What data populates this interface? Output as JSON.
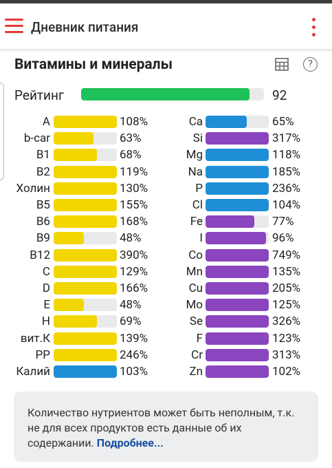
{
  "app": {
    "title": "Дневник питания"
  },
  "section": {
    "title": "Витамины и минералы"
  },
  "rating": {
    "label": "Рейтинг",
    "value": "92",
    "fraction": 0.92
  },
  "colors": {
    "vitamin": "#f2d600",
    "mineral": "#1e8fd6",
    "trace": "#8a45bf",
    "rating": "#1fc25a",
    "accent": "#e53935"
  },
  "vitamins": [
    {
      "name": "A",
      "pct": "108%",
      "fill": 1.0,
      "color": "vitamin"
    },
    {
      "name": "b-car",
      "pct": "63%",
      "fill": 0.63,
      "color": "vitamin"
    },
    {
      "name": "B1",
      "pct": "68%",
      "fill": 0.68,
      "color": "vitamin"
    },
    {
      "name": "B2",
      "pct": "119%",
      "fill": 1.0,
      "color": "vitamin"
    },
    {
      "name": "Холин",
      "pct": "130%",
      "fill": 1.0,
      "color": "vitamin"
    },
    {
      "name": "B5",
      "pct": "155%",
      "fill": 1.0,
      "color": "vitamin"
    },
    {
      "name": "B6",
      "pct": "168%",
      "fill": 1.0,
      "color": "vitamin"
    },
    {
      "name": "B9",
      "pct": "48%",
      "fill": 0.48,
      "color": "vitamin"
    },
    {
      "name": "B12",
      "pct": "390%",
      "fill": 1.0,
      "color": "vitamin"
    },
    {
      "name": "C",
      "pct": "129%",
      "fill": 1.0,
      "color": "vitamin"
    },
    {
      "name": "D",
      "pct": "166%",
      "fill": 1.0,
      "color": "vitamin"
    },
    {
      "name": "E",
      "pct": "48%",
      "fill": 0.48,
      "color": "vitamin"
    },
    {
      "name": "H",
      "pct": "69%",
      "fill": 0.69,
      "color": "vitamin"
    },
    {
      "name": "вит.К",
      "pct": "139%",
      "fill": 1.0,
      "color": "vitamin"
    },
    {
      "name": "PP",
      "pct": "246%",
      "fill": 1.0,
      "color": "vitamin"
    },
    {
      "name": "Калий",
      "pct": "103%",
      "fill": 1.0,
      "color": "mineral"
    }
  ],
  "minerals": [
    {
      "name": "Ca",
      "pct": "65%",
      "fill": 0.65,
      "color": "mineral"
    },
    {
      "name": "Si",
      "pct": "317%",
      "fill": 1.0,
      "color": "trace"
    },
    {
      "name": "Mg",
      "pct": "118%",
      "fill": 1.0,
      "color": "mineral"
    },
    {
      "name": "Na",
      "pct": "185%",
      "fill": 1.0,
      "color": "mineral"
    },
    {
      "name": "P",
      "pct": "236%",
      "fill": 1.0,
      "color": "mineral"
    },
    {
      "name": "Cl",
      "pct": "104%",
      "fill": 1.0,
      "color": "mineral"
    },
    {
      "name": "Fe",
      "pct": "77%",
      "fill": 0.77,
      "color": "trace"
    },
    {
      "name": "I",
      "pct": "96%",
      "fill": 0.96,
      "color": "trace"
    },
    {
      "name": "Co",
      "pct": "749%",
      "fill": 1.0,
      "color": "trace"
    },
    {
      "name": "Mn",
      "pct": "135%",
      "fill": 1.0,
      "color": "trace"
    },
    {
      "name": "Cu",
      "pct": "205%",
      "fill": 1.0,
      "color": "trace"
    },
    {
      "name": "Mo",
      "pct": "125%",
      "fill": 1.0,
      "color": "trace"
    },
    {
      "name": "Se",
      "pct": "326%",
      "fill": 1.0,
      "color": "trace"
    },
    {
      "name": "F",
      "pct": "123%",
      "fill": 1.0,
      "color": "trace"
    },
    {
      "name": "Cr",
      "pct": "313%",
      "fill": 1.0,
      "color": "trace"
    },
    {
      "name": "Zn",
      "pct": "102%",
      "fill": 1.0,
      "color": "trace"
    }
  ],
  "note": {
    "text": "Количество нутриентов может быть неполным, т.к. не для всех продуктов есть данные об их содержании.",
    "link": "Подробнее..."
  },
  "icons": {
    "menu": "menu-icon",
    "more": "more-vert-icon",
    "table": "table-icon",
    "help": "help-icon",
    "help_glyph": "?"
  }
}
